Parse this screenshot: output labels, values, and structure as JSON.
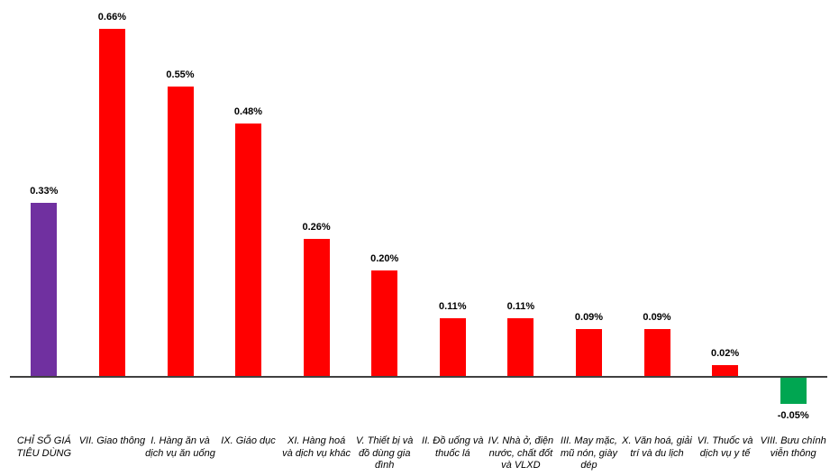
{
  "chart_data": {
    "type": "bar",
    "title": "",
    "xlabel": "",
    "ylabel": "",
    "unit": "%",
    "ylim": [
      -0.1,
      0.7
    ],
    "grid": false,
    "legend": "none",
    "axis_visible": "x-only",
    "categories": [
      "CHỈ SỐ GIÁ TIÊU DÙNG",
      "VII. Giao thông",
      "I. Hàng ăn và dịch vụ ăn uống",
      "IX. Giáo dục",
      "XI. Hàng hoá và dịch vụ khác",
      "V. Thiết bị và đồ dùng gia đình",
      "II. Đồ uống và thuốc lá",
      "IV. Nhà ở, điện nước, chất đốt và VLXD",
      "III. May mặc, mũ nón, giày dép",
      "X. Văn hoá, giải trí và du lịch",
      "VI. Thuốc và dịch vụ y tế",
      "VIII. Bưu chính viễn thông"
    ],
    "category_lines": [
      [
        "CHỈ SỐ GIÁ",
        "TIÊU DÙNG"
      ],
      [
        "VII. Giao thông"
      ],
      [
        "I. Hàng ăn và",
        "dịch vụ ăn uống"
      ],
      [
        "IX. Giáo dục"
      ],
      [
        "XI. Hàng hoá",
        "và dịch vụ khác"
      ],
      [
        "V. Thiết bị và",
        "đồ dùng gia",
        "đình"
      ],
      [
        "II. Đồ uống và",
        "thuốc lá"
      ],
      [
        "IV. Nhà ở, điện",
        "nước, chất đốt",
        "và VLXD"
      ],
      [
        "III. May mặc,",
        "mũ nón, giày",
        "dép"
      ],
      [
        "X. Văn hoá, giải",
        "trí và du lịch"
      ],
      [
        "VI. Thuốc và",
        "dịch vụ y tế"
      ],
      [
        "VIII. Bưu chính",
        "viễn thông"
      ]
    ],
    "values": [
      0.33,
      0.66,
      0.55,
      0.48,
      0.26,
      0.2,
      0.11,
      0.11,
      0.09,
      0.09,
      0.02,
      -0.05
    ],
    "value_labels": [
      "0.33%",
      "0.66%",
      "0.55%",
      "0.48%",
      "0.26%",
      "0.20%",
      "0.11%",
      "0.11%",
      "0.09%",
      "0.09%",
      "0.02%",
      "-0.05%"
    ],
    "bar_colors": [
      "#7030A0",
      "#FF0000",
      "#FF0000",
      "#FF0000",
      "#FF0000",
      "#FF0000",
      "#FF0000",
      "#FF0000",
      "#FF0000",
      "#FF0000",
      "#FF0000",
      "#00A651"
    ]
  },
  "colors": {
    "cpi_bar": "#7030A0",
    "positive_bar": "#FF0000",
    "negative_bar": "#00A651",
    "axis_line": "#404040",
    "label_text": "#000000",
    "background": "#FFFFFF"
  }
}
